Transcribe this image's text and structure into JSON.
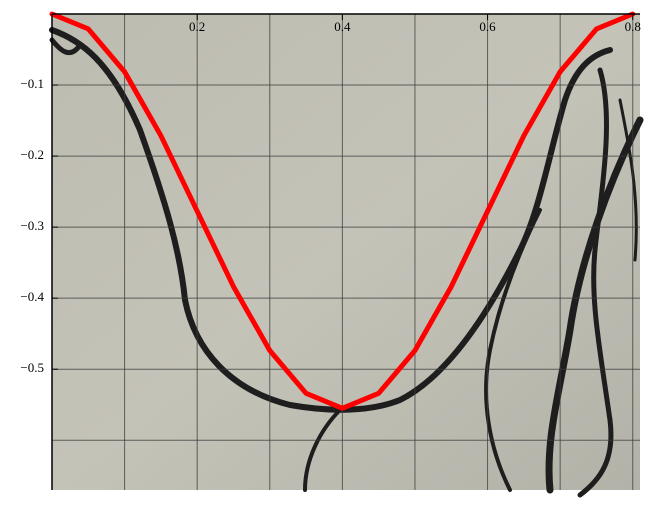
{
  "chart_data": {
    "type": "line",
    "x": [
      0,
      0.05,
      0.1,
      0.15,
      0.2,
      0.25,
      0.3,
      0.35,
      0.4,
      0.45,
      0.5,
      0.55,
      0.6,
      0.65,
      0.7,
      0.75,
      0.8
    ],
    "series": [
      {
        "color": "#ff0000",
        "values": [
          0,
          -0.0211,
          -0.0813,
          -0.1713,
          -0.2775,
          -0.3837,
          -0.4737,
          -0.5339,
          -0.555,
          -0.5339,
          -0.4737,
          -0.3837,
          -0.2775,
          -0.1713,
          -0.0813,
          -0.0211,
          0
        ]
      }
    ],
    "xlim": [
      0,
      0.81
    ],
    "ylim": [
      -0.67,
      0
    ],
    "xticks": [
      0.2,
      0.4,
      0.6,
      0.8
    ],
    "yticks": [
      {
        "value": -0.1,
        "label": "−0.1"
      },
      {
        "value": -0.2,
        "label": "−0.2"
      },
      {
        "value": -0.3,
        "label": "−0.3"
      },
      {
        "value": -0.4,
        "label": "−0.4"
      },
      {
        "value": -0.5,
        "label": "−0.5"
      }
    ],
    "xgrid": [
      0.1,
      0.2,
      0.3,
      0.4,
      0.5,
      0.6,
      0.7,
      0.8
    ],
    "ygrid": [
      -0.1,
      -0.2,
      -0.3,
      -0.4,
      -0.5,
      -0.6
    ],
    "grid": true
  }
}
